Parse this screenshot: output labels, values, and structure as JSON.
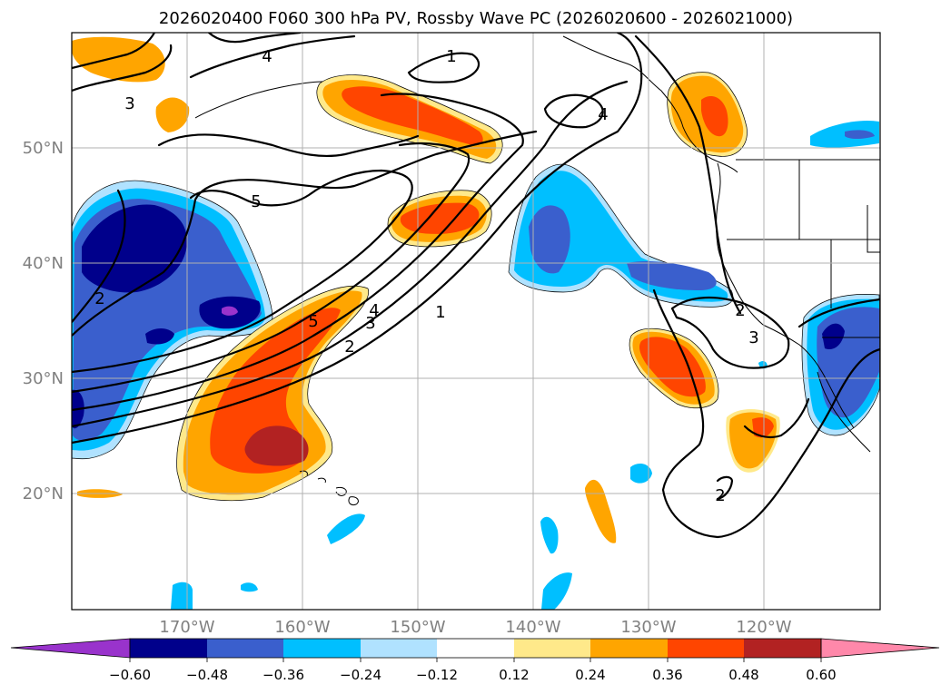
{
  "title": "2026020400 F060 300 hPa PV, Rossby Wave PC (2026020600 - 2026021000)",
  "lat_labels": [
    "50°N",
    "40°N",
    "30°N",
    "20°N"
  ],
  "lon_labels": [
    "170°W",
    "160°W",
    "150°W",
    "140°W",
    "130°W",
    "120°W"
  ],
  "contour_labels": [
    "1",
    "1",
    "2",
    "2",
    "2",
    "2",
    "3",
    "3",
    "3",
    "4",
    "4",
    "4",
    "5",
    "5"
  ],
  "colorbar": {
    "ticks": [
      "−0.60",
      "−0.48",
      "−0.36",
      "−0.24",
      "−0.12",
      "0.12",
      "0.24",
      "0.36",
      "0.48",
      "0.60"
    ],
    "colors": [
      "#9933cc",
      "#00008b",
      "#3a5fcd",
      "#00bfff",
      "#b0e2ff",
      "#ffffff",
      "#ffe98a",
      "#ffa500",
      "#ff4500",
      "#b22222",
      "#ff88aa"
    ]
  },
  "palette": {
    "neg_strong": "#00008b",
    "neg_mid": "#3a5fcd",
    "neg_light": "#00bfff",
    "neg_pale": "#b0e2ff",
    "pos_pale": "#ffe98a",
    "pos_light": "#ffa500",
    "pos_mid": "#ff4500",
    "pos_strong": "#b22222",
    "neg_extreme": "#9933cc"
  }
}
